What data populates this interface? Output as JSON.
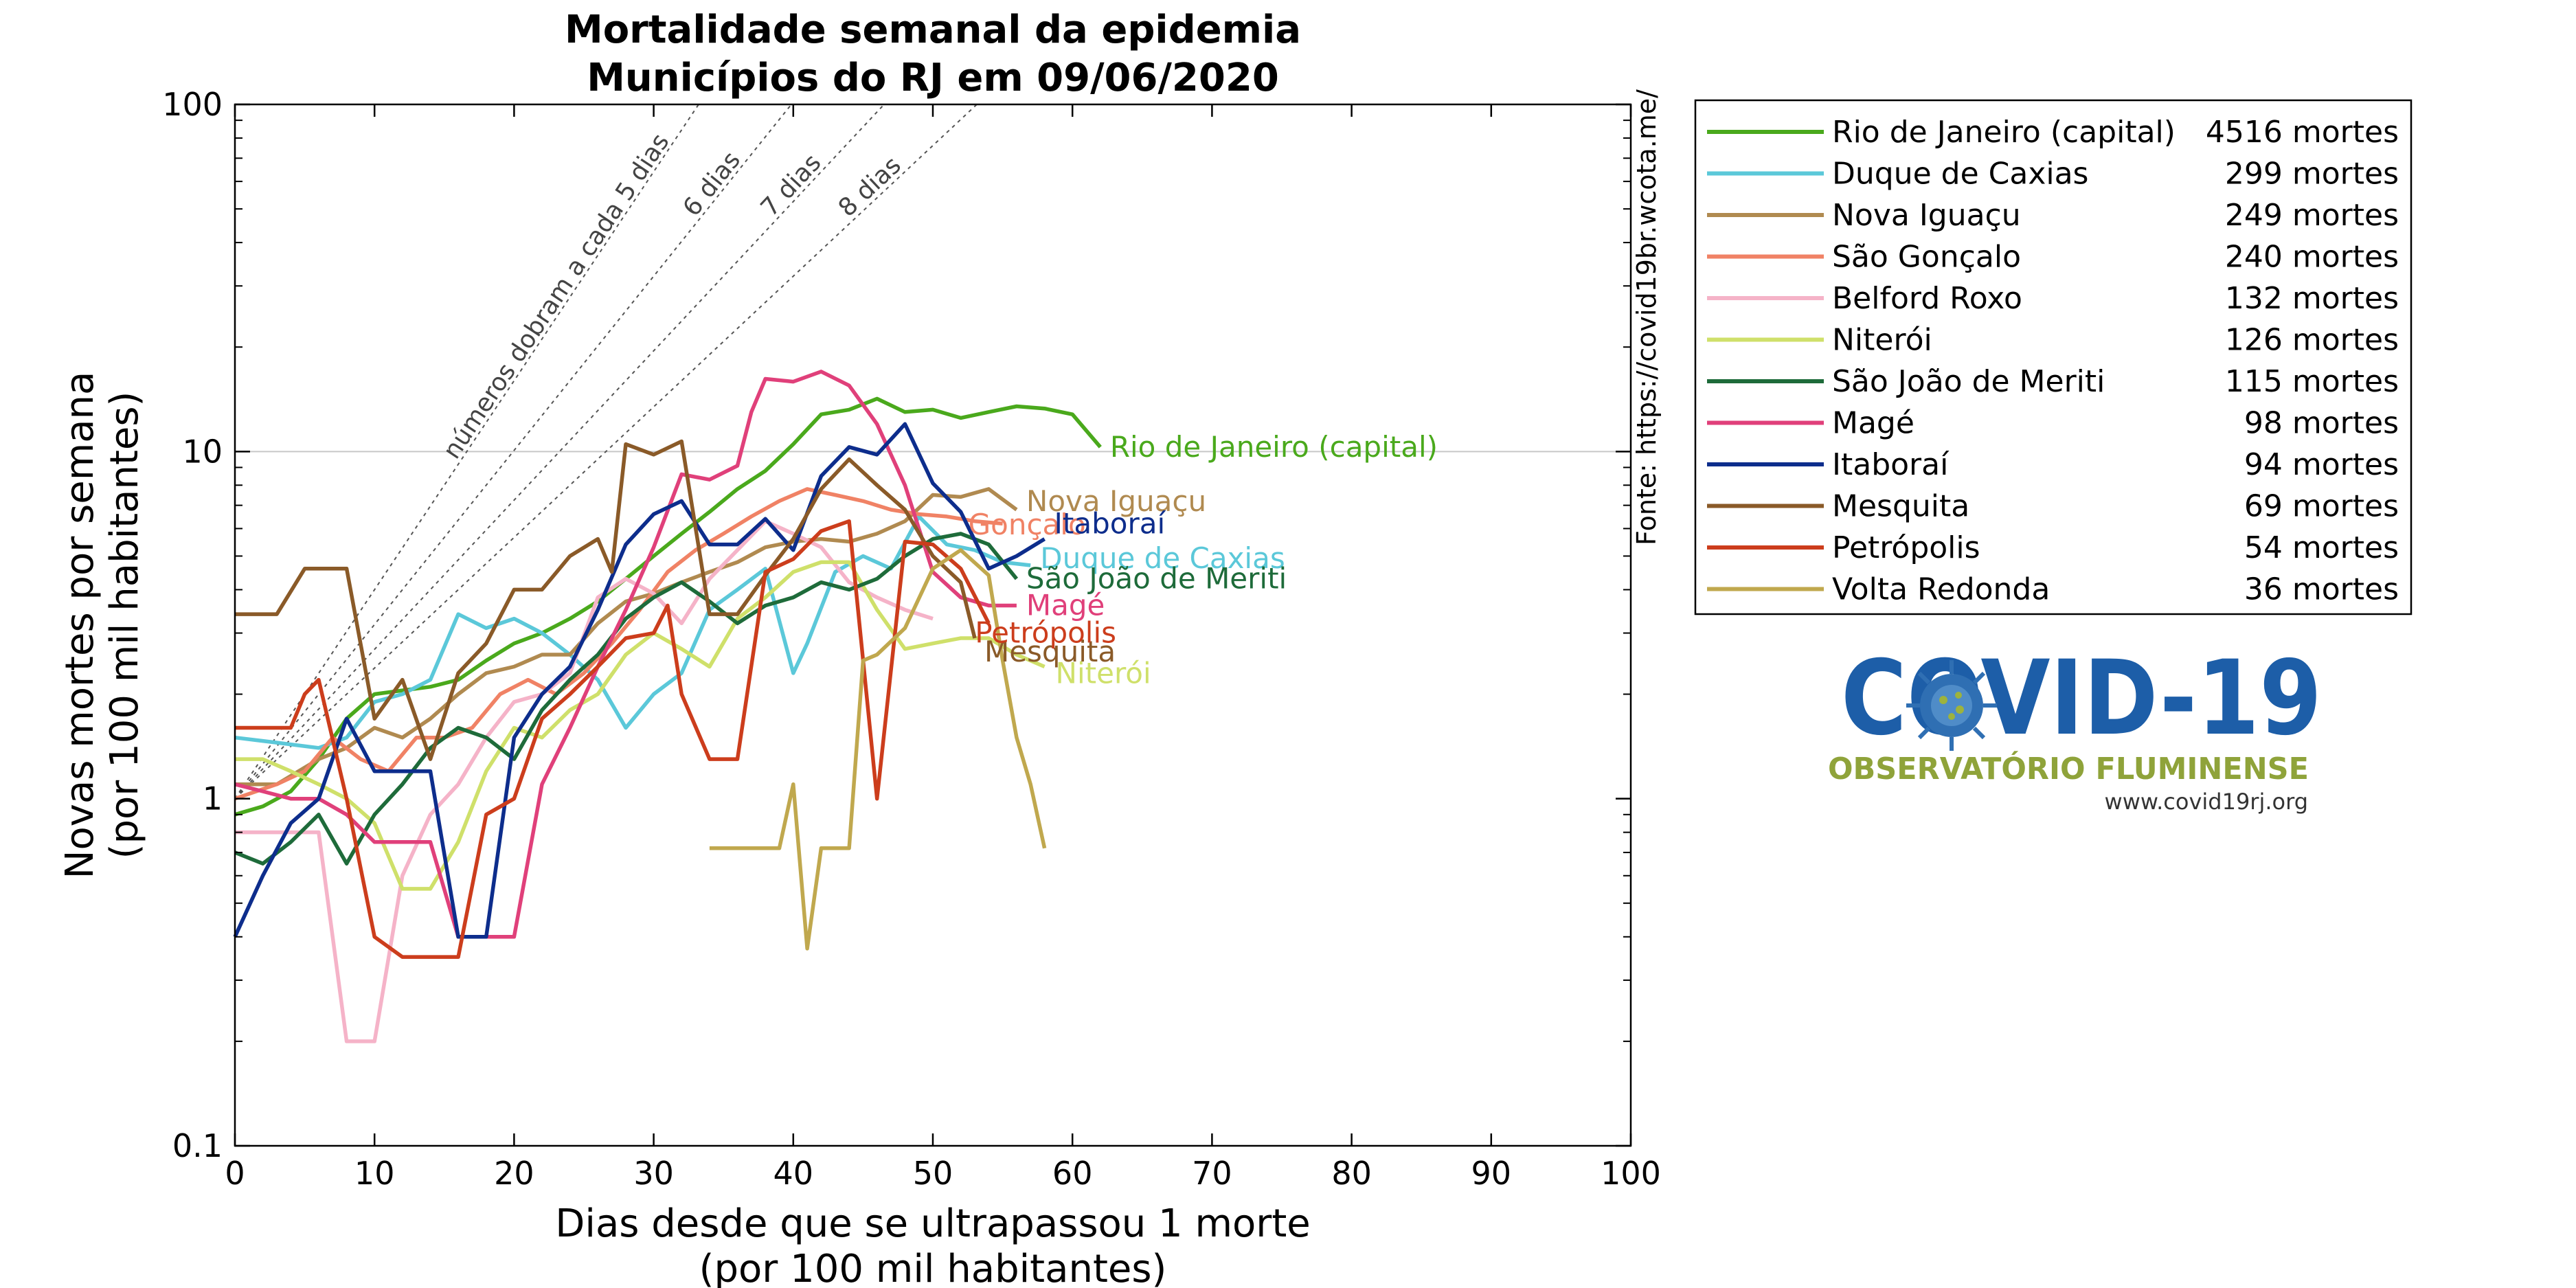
{
  "chart_data": {
    "type": "line",
    "title": [
      "Mortalidade semanal da epidemia",
      "Municípios do RJ em 09/06/2020"
    ],
    "xlabel": [
      "Dias desde que se ultrapassou 1 morte",
      "(por 100 mil habitantes)"
    ],
    "ylabel": [
      "Novas mortes por semana",
      "(por 100 mil habitantes)"
    ],
    "xlim": [
      0,
      100
    ],
    "ylim": [
      0.1,
      100
    ],
    "yscale": "log",
    "xticks": [
      0,
      10,
      20,
      30,
      40,
      50,
      60,
      70,
      80,
      90,
      100
    ],
    "xtick_labels": [
      "0",
      "10",
      "20",
      "30",
      "40",
      "50",
      "60",
      "70",
      "80",
      "90",
      "100"
    ],
    "yticks": [
      0.1,
      1,
      10,
      100
    ],
    "ytick_labels": [
      "0.1",
      "1",
      "10",
      "100"
    ],
    "grid": "horizontal line at 10",
    "legend_position": "right",
    "source": "Fonte: https://covid19br.wcota.me/",
    "reference_lines": [
      {
        "label": "números dobram a cada 5 dias",
        "doubling_days": 5
      },
      {
        "label": "6 dias",
        "doubling_days": 6
      },
      {
        "label": "7 dias",
        "doubling_days": 7
      },
      {
        "label": "8 dias",
        "doubling_days": 8
      }
    ],
    "series": [
      {
        "name": "Rio de Janeiro (capital)",
        "legend_value": "4516 mortes",
        "end_label": "Rio de Janeiro (capital)",
        "color": "#4aa91c",
        "x": [
          0,
          2,
          4,
          6,
          8,
          10,
          12,
          14,
          16,
          18,
          20,
          22,
          24,
          26,
          28,
          30,
          32,
          34,
          36,
          38,
          40,
          42,
          44,
          46,
          48,
          50,
          52,
          54,
          56,
          58,
          60,
          62
        ],
        "y": [
          0.9,
          0.95,
          1.05,
          1.3,
          1.7,
          2.0,
          2.05,
          2.1,
          2.2,
          2.5,
          2.8,
          3.0,
          3.3,
          3.7,
          4.3,
          5.0,
          5.8,
          6.7,
          7.8,
          8.8,
          10.5,
          12.8,
          13.2,
          14.2,
          13.0,
          13.2,
          12.5,
          13.0,
          13.5,
          13.3,
          12.8,
          10.3
        ]
      },
      {
        "name": "Duque de Caxias",
        "legend_value": "299 mortes",
        "end_label": "Duque de Caxias",
        "color": "#5bc8d9",
        "x": [
          0,
          3,
          6,
          8,
          10,
          12,
          14,
          16,
          18,
          20,
          22,
          24,
          26,
          28,
          30,
          32,
          34,
          36,
          38,
          40,
          41,
          43,
          45,
          47,
          49,
          51,
          53,
          55,
          57
        ],
        "y": [
          1.5,
          1.45,
          1.4,
          1.5,
          1.9,
          2.0,
          2.2,
          3.4,
          3.1,
          3.3,
          3.0,
          2.6,
          2.2,
          1.6,
          2.0,
          2.3,
          3.5,
          4.0,
          4.6,
          2.3,
          2.8,
          4.5,
          5.0,
          4.6,
          6.5,
          5.4,
          5.2,
          4.8,
          4.7
        ]
      },
      {
        "name": "Nova Iguaçu",
        "legend_value": "249 mortes",
        "end_label": "Nova Iguaçu",
        "color": "#b08a50",
        "x": [
          0,
          3,
          6,
          8,
          10,
          12,
          14,
          16,
          18,
          20,
          22,
          24,
          26,
          28,
          30,
          32,
          34,
          36,
          38,
          40,
          42,
          44,
          46,
          48,
          50,
          52,
          54,
          56
        ],
        "y": [
          1.1,
          1.1,
          1.3,
          1.4,
          1.6,
          1.5,
          1.7,
          2.0,
          2.3,
          2.4,
          2.6,
          2.6,
          3.2,
          3.7,
          3.9,
          4.2,
          4.5,
          4.8,
          5.3,
          5.5,
          5.6,
          5.5,
          5.8,
          6.3,
          7.5,
          7.4,
          7.8,
          6.8
        ]
      },
      {
        "name": "São Gonçalo",
        "legend_value": "240 mortes",
        "end_label": "Gonçalo",
        "color": "#f08265",
        "x": [
          0,
          3,
          5,
          7,
          9,
          11,
          13,
          15,
          17,
          19,
          21,
          23,
          25,
          27,
          29,
          31,
          33,
          35,
          37,
          39,
          41,
          43,
          45,
          47,
          49,
          51,
          53,
          55
        ],
        "y": [
          1.0,
          1.1,
          1.2,
          1.5,
          1.3,
          1.2,
          1.5,
          1.5,
          1.6,
          2.0,
          2.2,
          2.0,
          2.3,
          2.8,
          3.5,
          4.5,
          5.2,
          5.8,
          6.5,
          7.2,
          7.8,
          7.5,
          7.2,
          6.8,
          6.6,
          6.5,
          6.3,
          6.2
        ]
      },
      {
        "name": "Belford Roxo",
        "legend_value": "132 mortes",
        "end_label": "",
        "color": "#f5b3c8",
        "x": [
          0,
          2,
          4,
          6,
          8,
          10,
          12,
          14,
          16,
          18,
          20,
          22,
          24,
          26,
          28,
          30,
          32,
          34,
          36,
          38,
          40,
          42,
          44,
          46,
          48,
          50
        ],
        "y": [
          0.8,
          0.8,
          0.8,
          0.8,
          0.2,
          0.2,
          0.6,
          0.9,
          1.1,
          1.5,
          1.9,
          2.0,
          2.3,
          3.8,
          4.3,
          3.9,
          3.2,
          4.3,
          5.2,
          6.3,
          5.8,
          5.3,
          4.2,
          3.8,
          3.5,
          3.3
        ]
      },
      {
        "name": "Niterói",
        "legend_value": "126 mortes",
        "end_label": "Niterói",
        "color": "#cfe06a",
        "x": [
          0,
          2,
          4,
          6,
          8,
          10,
          12,
          14,
          16,
          18,
          20,
          22,
          24,
          26,
          28,
          30,
          32,
          34,
          36,
          38,
          40,
          42,
          44,
          46,
          48,
          50,
          52,
          54,
          56,
          58
        ],
        "y": [
          1.3,
          1.3,
          1.2,
          1.1,
          1.0,
          0.85,
          0.55,
          0.55,
          0.75,
          1.2,
          1.6,
          1.5,
          1.8,
          2.0,
          2.6,
          3.0,
          2.7,
          2.4,
          3.3,
          3.8,
          4.5,
          4.8,
          4.8,
          3.5,
          2.7,
          2.8,
          2.9,
          2.9,
          2.6,
          2.4
        ]
      },
      {
        "name": "São João de Meriti",
        "legend_value": "115 mortes",
        "end_label": "São João de Meriti",
        "color": "#1e6b3a",
        "x": [
          0,
          2,
          4,
          6,
          8,
          10,
          12,
          14,
          16,
          18,
          20,
          22,
          24,
          26,
          28,
          30,
          32,
          34,
          36,
          38,
          40,
          42,
          44,
          46,
          48,
          50,
          52,
          54,
          56
        ],
        "y": [
          0.7,
          0.65,
          0.75,
          0.9,
          0.65,
          0.9,
          1.1,
          1.4,
          1.6,
          1.5,
          1.3,
          1.8,
          2.2,
          2.6,
          3.3,
          3.8,
          4.2,
          3.7,
          3.2,
          3.6,
          3.8,
          4.2,
          4.0,
          4.3,
          5.0,
          5.6,
          5.8,
          5.4,
          4.3
        ]
      },
      {
        "name": "Magé",
        "legend_value": "98 mortes",
        "end_label": "Magé",
        "color": "#e0407a",
        "x": [
          0,
          2,
          4,
          6,
          8,
          10,
          12,
          14,
          16,
          18,
          20,
          22,
          24,
          26,
          28,
          30,
          32,
          34,
          36,
          37,
          38,
          40,
          42,
          44,
          46,
          48,
          50,
          52,
          54,
          56
        ],
        "y": [
          1.1,
          1.05,
          1.0,
          1.0,
          0.9,
          0.75,
          0.75,
          0.75,
          0.4,
          0.4,
          0.4,
          1.1,
          1.6,
          2.4,
          3.5,
          5.3,
          8.6,
          8.3,
          9.1,
          13.0,
          16.2,
          15.9,
          17.0,
          15.5,
          12.0,
          8.0,
          4.5,
          3.8,
          3.6,
          3.6
        ]
      },
      {
        "name": "Itaboraí",
        "legend_value": "94 mortes",
        "end_label": "Itaboraí",
        "color": "#0d2d8c",
        "x": [
          0,
          2,
          4,
          6,
          8,
          10,
          12,
          14,
          16,
          18,
          20,
          22,
          24,
          26,
          28,
          30,
          32,
          34,
          36,
          38,
          40,
          42,
          44,
          46,
          48,
          50,
          52,
          54,
          56,
          58
        ],
        "y": [
          0.4,
          0.6,
          0.85,
          1.0,
          1.7,
          1.2,
          1.2,
          1.2,
          0.4,
          0.4,
          1.5,
          2.0,
          2.4,
          3.5,
          5.4,
          6.6,
          7.2,
          5.4,
          5.4,
          6.4,
          5.2,
          8.5,
          10.3,
          9.8,
          12.0,
          8.1,
          6.7,
          4.6,
          5.0,
          5.6
        ]
      },
      {
        "name": "Mesquita",
        "legend_value": "69 mortes",
        "end_label": "Mesquita",
        "color": "#8a5a28",
        "x": [
          0,
          3,
          5,
          6,
          8,
          10,
          12,
          14,
          16,
          18,
          20,
          22,
          24,
          26,
          27,
          28,
          30,
          32,
          34,
          36,
          38,
          40,
          42,
          44,
          46,
          48,
          50,
          52,
          53
        ],
        "y": [
          3.4,
          3.4,
          4.6,
          4.6,
          4.6,
          1.7,
          2.2,
          1.3,
          2.3,
          2.8,
          4.0,
          4.0,
          5.0,
          5.6,
          4.5,
          10.5,
          9.8,
          10.7,
          3.4,
          3.4,
          4.4,
          5.6,
          7.8,
          9.5,
          8.0,
          6.8,
          5.0,
          4.2,
          2.9
        ]
      },
      {
        "name": "Petrópolis",
        "legend_value": "54 mortes",
        "end_label": "Petrópolis",
        "color": "#cc3d1c",
        "x": [
          0,
          2,
          4,
          5,
          6,
          8,
          10,
          12,
          14,
          16,
          18,
          20,
          22,
          24,
          26,
          28,
          30,
          31,
          32,
          34,
          36,
          38,
          40,
          42,
          44,
          46,
          48,
          50,
          52,
          54
        ],
        "y": [
          1.6,
          1.6,
          1.6,
          2.0,
          2.2,
          1.0,
          0.4,
          0.35,
          0.35,
          0.35,
          0.9,
          1.0,
          1.7,
          2.0,
          2.4,
          2.9,
          3.0,
          3.6,
          2.0,
          1.3,
          1.3,
          4.5,
          4.9,
          5.9,
          6.3,
          1.0,
          5.5,
          5.4,
          4.6,
          3.2
        ]
      },
      {
        "name": "Volta Redonda",
        "legend_value": "36 mortes",
        "end_label": "",
        "color": "#c0a84e",
        "x": [
          34,
          37,
          39,
          40,
          41,
          42,
          44,
          45,
          46,
          48,
          50,
          52,
          54,
          55,
          56,
          57,
          58
        ],
        "y": [
          0.72,
          0.72,
          0.72,
          1.1,
          0.37,
          0.72,
          0.72,
          2.5,
          2.6,
          3.1,
          4.6,
          5.2,
          4.4,
          2.5,
          1.5,
          1.1,
          0.72
        ]
      }
    ]
  },
  "logo": {
    "title": "COVID-19",
    "subtitle": "OBSERVATÓRIO FLUMINENSE",
    "url": "www.covid19rj.org"
  }
}
